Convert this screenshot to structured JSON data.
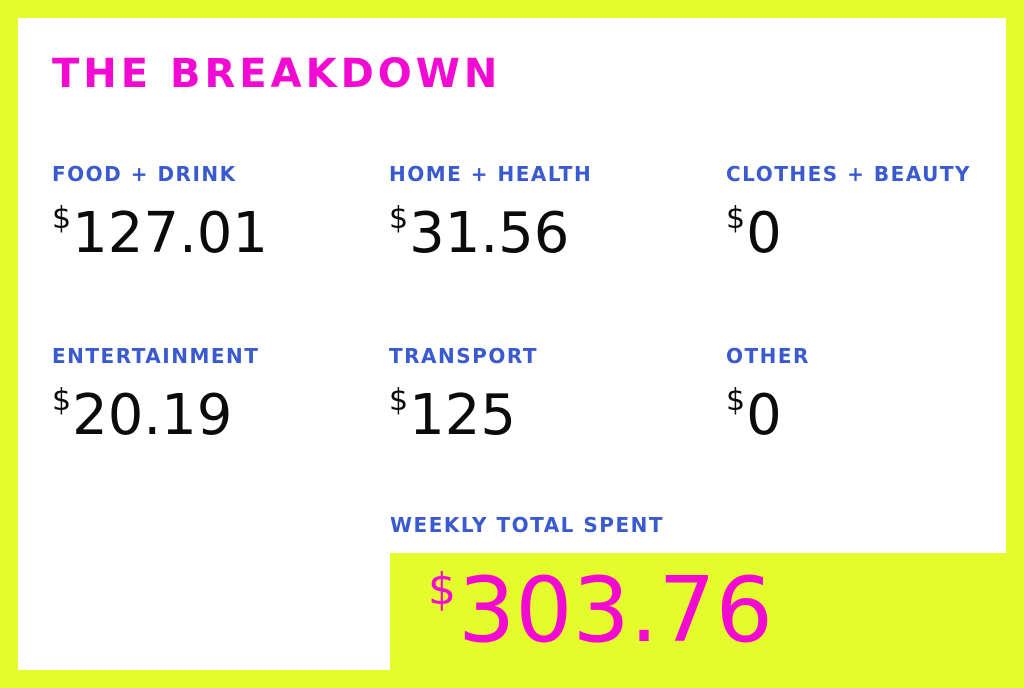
{
  "colors": {
    "background": "#e4fb2e",
    "card": "#ffffff",
    "title": "#f20ad2",
    "category_label": "#3a5ad0",
    "amount": "#0b0b0b",
    "total_amount": "#f20ad2"
  },
  "title": "THE BREAKDOWN",
  "currency_symbol": "$",
  "categories": [
    {
      "label": "FOOD + DRINK",
      "amount": "127.01"
    },
    {
      "label": "HOME + HEALTH",
      "amount": "31.56"
    },
    {
      "label": "CLOTHES + BEAUTY",
      "amount": "0"
    },
    {
      "label": "ENTERTAINMENT",
      "amount": "20.19"
    },
    {
      "label": "TRANSPORT",
      "amount": "125"
    },
    {
      "label": "OTHER",
      "amount": "0"
    }
  ],
  "total": {
    "label": "WEEKLY TOTAL SPENT",
    "amount": "303.76"
  }
}
